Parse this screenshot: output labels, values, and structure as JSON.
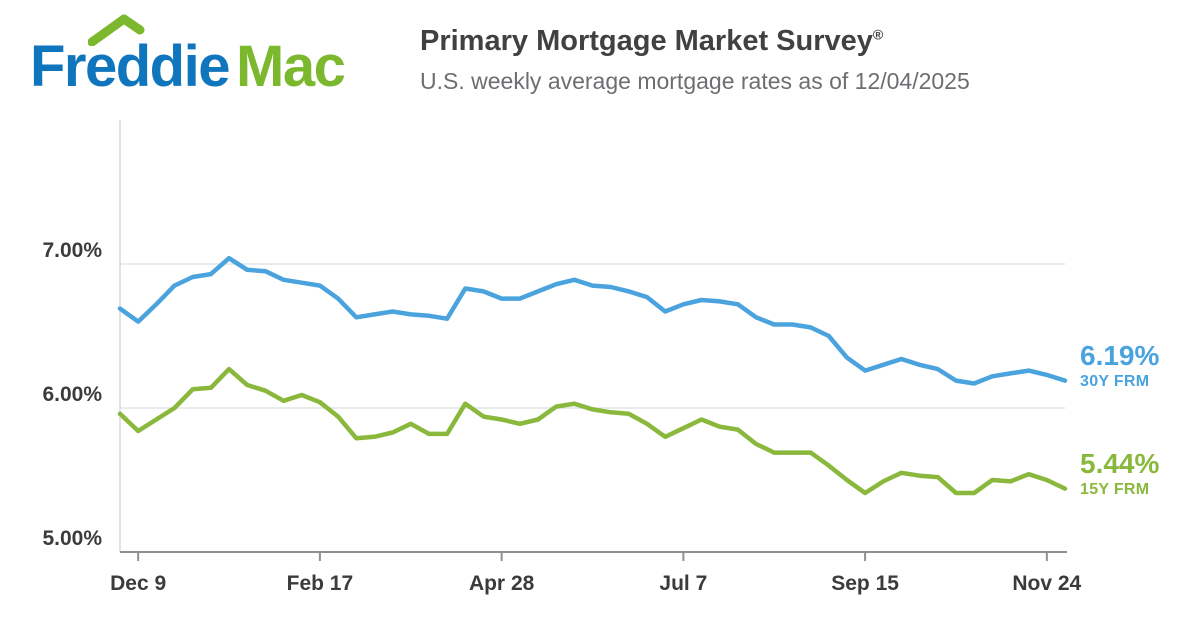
{
  "header": {
    "logo": {
      "freddie": "Freddie",
      "mac": "Mac",
      "blue_hex": "#0f76bd",
      "green_hex": "#7cb82e",
      "roof_icon": "house-roof-icon"
    },
    "title": "Primary Mortgage Market Survey",
    "title_symbol": "®",
    "subtitle": "U.S. weekly average mortgage rates as of 12/04/2025"
  },
  "chart_data": {
    "type": "line",
    "title": "U.S. weekly average mortgage rates",
    "as_of_date": "12/04/2025",
    "x_unit": "week",
    "ylim": [
      5.0,
      8.0
    ],
    "grid": true,
    "gridline_color": "#e2e3e4",
    "axis_color": "#8d8f92",
    "axis_light_color": "#d9dadb",
    "label_color": "#3b3b3d",
    "y_ticks": [
      {
        "value": 7.0,
        "label": "7.00%"
      },
      {
        "value": 6.0,
        "label": "6.00%"
      },
      {
        "value": 5.0,
        "label": "5.00%"
      }
    ],
    "x_ticks": [
      {
        "index": 1,
        "label": "Dec 9"
      },
      {
        "index": 11,
        "label": "Feb 17"
      },
      {
        "index": 21,
        "label": "Apr 28"
      },
      {
        "index": 31,
        "label": "Jul 7"
      },
      {
        "index": 41,
        "label": "Sep 15"
      },
      {
        "index": 51,
        "label": "Nov 24"
      }
    ],
    "legend_position": "right-line-end-annotations",
    "series": [
      {
        "name": "30Y FRM",
        "color": "#4ba3de",
        "current_label": "6.19%",
        "values": [
          6.69,
          6.6,
          6.72,
          6.85,
          6.91,
          6.93,
          7.04,
          6.96,
          6.95,
          6.89,
          6.87,
          6.85,
          6.76,
          6.63,
          6.65,
          6.67,
          6.65,
          6.64,
          6.62,
          6.83,
          6.81,
          6.76,
          6.76,
          6.81,
          6.86,
          6.89,
          6.85,
          6.84,
          6.81,
          6.77,
          6.67,
          6.72,
          6.75,
          6.74,
          6.72,
          6.63,
          6.58,
          6.58,
          6.56,
          6.5,
          6.35,
          6.26,
          6.3,
          6.34,
          6.3,
          6.27,
          6.19,
          6.17,
          6.22,
          6.24,
          6.26,
          6.23,
          6.19
        ]
      },
      {
        "name": "15Y FRM",
        "color": "#8ab83d",
        "current_label": "5.44%",
        "values": [
          5.96,
          5.84,
          5.92,
          6.0,
          6.13,
          6.14,
          6.27,
          6.16,
          6.12,
          6.05,
          6.09,
          6.04,
          5.94,
          5.79,
          5.8,
          5.83,
          5.89,
          5.82,
          5.82,
          6.03,
          5.94,
          5.92,
          5.89,
          5.92,
          6.01,
          6.03,
          5.99,
          5.97,
          5.96,
          5.89,
          5.8,
          5.86,
          5.92,
          5.87,
          5.85,
          5.75,
          5.69,
          5.69,
          5.69,
          5.6,
          5.5,
          5.41,
          5.49,
          5.55,
          5.53,
          5.52,
          5.41,
          5.41,
          5.5,
          5.49,
          5.54,
          5.5,
          5.44
        ]
      }
    ]
  }
}
